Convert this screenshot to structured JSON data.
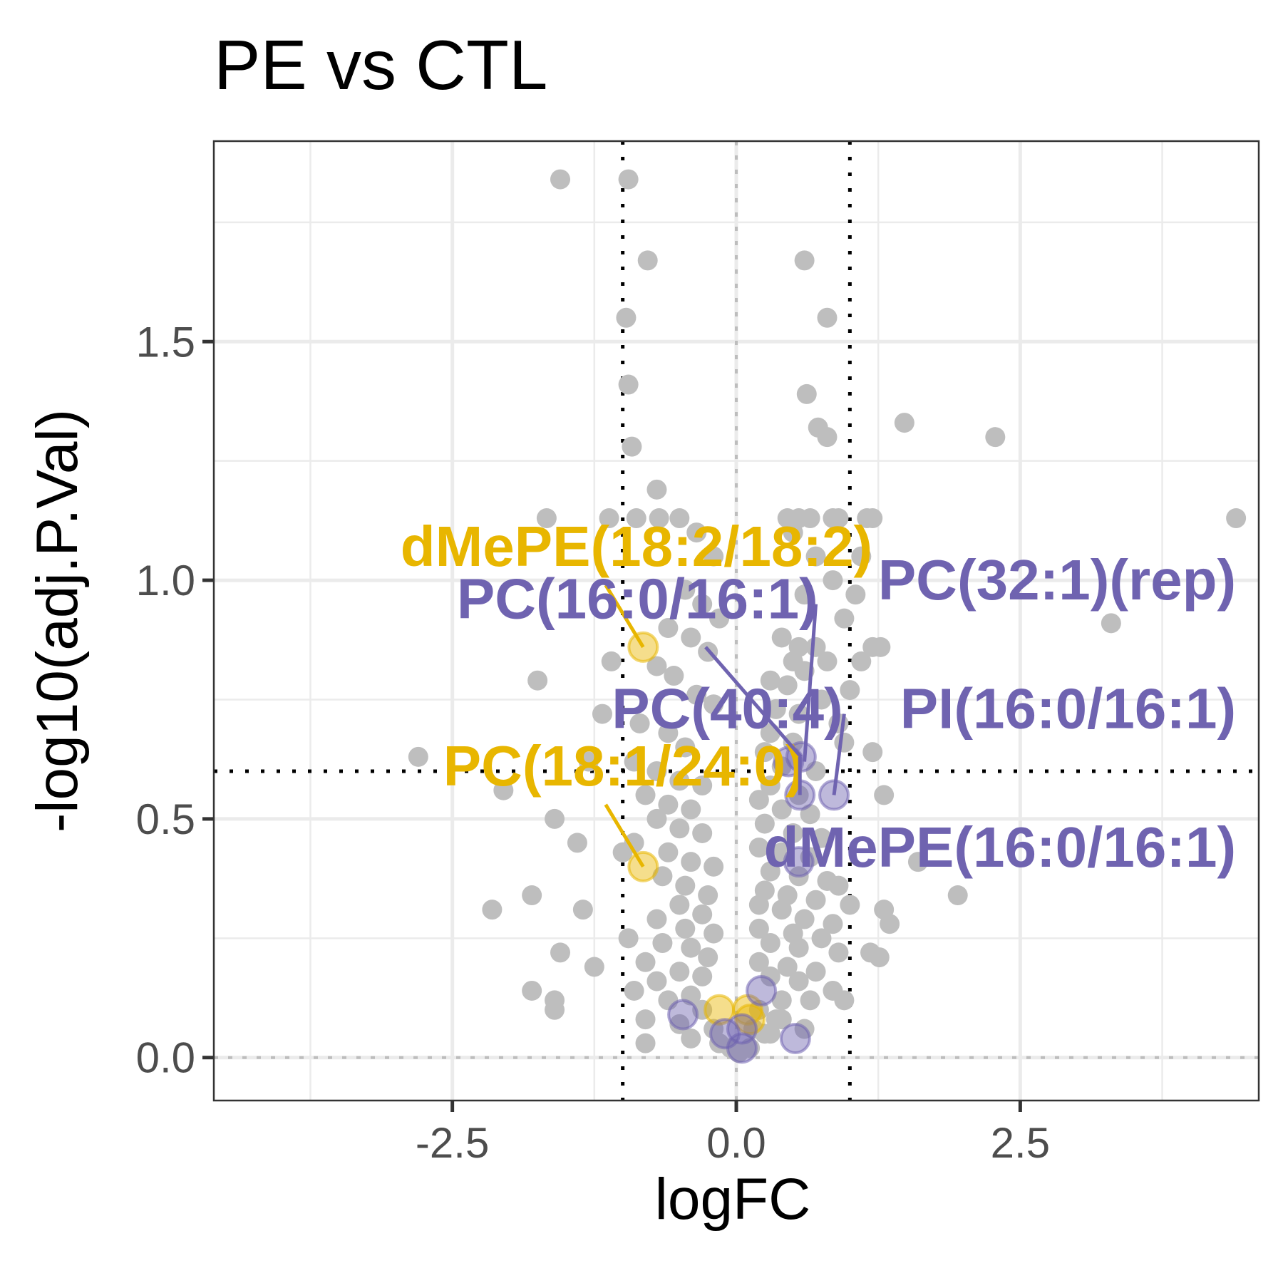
{
  "chart_data": {
    "type": "scatter",
    "title": "PE vs CTL",
    "xlabel": "logFC",
    "ylabel": "-log10(adj.P.Val)",
    "xlim": [
      -4.6,
      4.6
    ],
    "ylim": [
      -0.09,
      1.92
    ],
    "x_ticks": [
      "-2.5",
      "0.0",
      "2.5"
    ],
    "y_ticks": [
      "0.0",
      "0.5",
      "1.0",
      "1.5"
    ],
    "thresholds": {
      "logFC": [
        -1,
        1
      ],
      "neg_log10_p": 0.6
    },
    "colors": {
      "background_points": "#bebebe",
      "gold": "#e8b600",
      "purple": "#6f63b0"
    },
    "grid": true,
    "legend": "none",
    "background_points": [
      [
        -1.55,
        1.84
      ],
      [
        -0.95,
        1.84
      ],
      [
        -0.78,
        1.67
      ],
      [
        -0.97,
        1.55
      ],
      [
        -0.95,
        1.41
      ],
      [
        -0.92,
        1.28
      ],
      [
        -0.7,
        1.19
      ],
      [
        -1.67,
        1.13
      ],
      [
        -1.12,
        1.13
      ],
      [
        -0.88,
        1.13
      ],
      [
        -0.68,
        1.13
      ],
      [
        -0.5,
        1.13
      ],
      [
        -0.35,
        1.1
      ],
      [
        -0.2,
        1.05
      ],
      [
        -0.45,
        0.98
      ],
      [
        -0.3,
        0.95
      ],
      [
        -0.15,
        0.92
      ],
      [
        -0.6,
        0.9
      ],
      [
        -0.4,
        0.88
      ],
      [
        -0.25,
        0.85
      ],
      [
        -1.1,
        0.83
      ],
      [
        -0.7,
        0.82
      ],
      [
        -0.55,
        0.8
      ],
      [
        -1.75,
        0.79
      ],
      [
        -0.35,
        0.76
      ],
      [
        -0.2,
        0.74
      ],
      [
        -1.18,
        0.72
      ],
      [
        -0.85,
        0.7
      ],
      [
        -0.6,
        0.68
      ],
      [
        -0.45,
        0.65
      ],
      [
        -2.8,
        0.63
      ],
      [
        -1.3,
        0.62
      ],
      [
        -0.9,
        0.62
      ],
      [
        -0.7,
        0.6
      ],
      [
        -0.5,
        0.58
      ],
      [
        -0.3,
        0.57
      ],
      [
        -2.05,
        0.56
      ],
      [
        -0.8,
        0.55
      ],
      [
        -0.6,
        0.53
      ],
      [
        -0.4,
        0.52
      ],
      [
        -0.7,
        0.5
      ],
      [
        -1.6,
        0.5
      ],
      [
        -0.5,
        0.48
      ],
      [
        -0.3,
        0.47
      ],
      [
        -1.4,
        0.45
      ],
      [
        -0.9,
        0.45
      ],
      [
        -1.0,
        0.43
      ],
      [
        -0.6,
        0.43
      ],
      [
        -0.4,
        0.41
      ],
      [
        -0.2,
        0.4
      ],
      [
        -0.65,
        0.38
      ],
      [
        -0.45,
        0.36
      ],
      [
        -1.8,
        0.34
      ],
      [
        -0.25,
        0.34
      ],
      [
        -0.5,
        0.32
      ],
      [
        -2.15,
        0.31
      ],
      [
        -1.35,
        0.31
      ],
      [
        -0.3,
        0.3
      ],
      [
        -0.7,
        0.29
      ],
      [
        -0.45,
        0.27
      ],
      [
        -0.2,
        0.26
      ],
      [
        -0.95,
        0.25
      ],
      [
        -0.65,
        0.24
      ],
      [
        -0.4,
        0.23
      ],
      [
        -1.55,
        0.22
      ],
      [
        -0.25,
        0.21
      ],
      [
        -0.8,
        0.2
      ],
      [
        -1.25,
        0.19
      ],
      [
        -0.5,
        0.18
      ],
      [
        -0.3,
        0.17
      ],
      [
        -0.7,
        0.16
      ],
      [
        -1.8,
        0.14
      ],
      [
        -0.9,
        0.14
      ],
      [
        -0.4,
        0.13
      ],
      [
        -1.6,
        0.12
      ],
      [
        -0.6,
        0.12
      ],
      [
        -1.6,
        0.1
      ],
      [
        -0.3,
        0.1
      ],
      [
        -0.8,
        0.08
      ],
      [
        -0.5,
        0.07
      ],
      [
        -0.2,
        0.06
      ],
      [
        -0.8,
        0.03
      ],
      [
        -0.4,
        0.04
      ],
      [
        -0.15,
        0.03
      ],
      [
        -0.05,
        0.02
      ],
      [
        0.02,
        0.01
      ],
      [
        0.12,
        0.02
      ],
      [
        0.25,
        0.05
      ],
      [
        0.35,
        0.08
      ],
      [
        0.6,
        1.67
      ],
      [
        0.8,
        1.55
      ],
      [
        0.62,
        1.39
      ],
      [
        0.72,
        1.32
      ],
      [
        0.8,
        1.3
      ],
      [
        1.48,
        1.33
      ],
      [
        2.28,
        1.3
      ],
      [
        4.4,
        1.13
      ],
      [
        0.45,
        1.13
      ],
      [
        0.55,
        1.13
      ],
      [
        0.65,
        1.13
      ],
      [
        0.85,
        1.13
      ],
      [
        0.9,
        1.13
      ],
      [
        1.15,
        1.13
      ],
      [
        1.2,
        1.13
      ],
      [
        0.5,
        1.1
      ],
      [
        0.7,
        1.05
      ],
      [
        1.1,
        1.05
      ],
      [
        0.85,
        1.0
      ],
      [
        0.6,
        0.97
      ],
      [
        1.05,
        0.97
      ],
      [
        0.95,
        0.92
      ],
      [
        3.3,
        0.91
      ],
      [
        0.4,
        0.88
      ],
      [
        0.55,
        0.86
      ],
      [
        0.7,
        0.86
      ],
      [
        1.2,
        0.86
      ],
      [
        1.27,
        0.86
      ],
      [
        0.5,
        0.83
      ],
      [
        0.8,
        0.83
      ],
      [
        1.1,
        0.83
      ],
      [
        0.6,
        0.81
      ],
      [
        0.3,
        0.79
      ],
      [
        0.45,
        0.78
      ],
      [
        1.0,
        0.77
      ],
      [
        0.75,
        0.75
      ],
      [
        0.35,
        0.73
      ],
      [
        0.55,
        0.72
      ],
      [
        0.9,
        0.7
      ],
      [
        0.3,
        0.68
      ],
      [
        0.5,
        0.66
      ],
      [
        0.95,
        0.66
      ],
      [
        0.25,
        0.64
      ],
      [
        1.2,
        0.64
      ],
      [
        0.4,
        0.61
      ],
      [
        0.7,
        0.6
      ],
      [
        0.3,
        0.57
      ],
      [
        0.55,
        0.55
      ],
      [
        0.2,
        0.54
      ],
      [
        1.3,
        0.55
      ],
      [
        0.4,
        0.52
      ],
      [
        0.65,
        0.51
      ],
      [
        0.25,
        0.49
      ],
      [
        0.5,
        0.47
      ],
      [
        0.75,
        0.46
      ],
      [
        0.2,
        0.44
      ],
      [
        0.4,
        0.43
      ],
      [
        0.65,
        0.42
      ],
      [
        1.6,
        0.41
      ],
      [
        0.3,
        0.39
      ],
      [
        0.55,
        0.38
      ],
      [
        0.8,
        0.37
      ],
      [
        0.9,
        0.36
      ],
      [
        1.95,
        0.34
      ],
      [
        0.25,
        0.35
      ],
      [
        0.45,
        0.34
      ],
      [
        0.7,
        0.33
      ],
      [
        0.2,
        0.32
      ],
      [
        1.0,
        0.32
      ],
      [
        0.4,
        0.31
      ],
      [
        1.3,
        0.31
      ],
      [
        0.6,
        0.29
      ],
      [
        0.85,
        0.28
      ],
      [
        1.35,
        0.28
      ],
      [
        0.2,
        0.27
      ],
      [
        0.5,
        0.26
      ],
      [
        0.75,
        0.25
      ],
      [
        0.3,
        0.24
      ],
      [
        0.55,
        0.23
      ],
      [
        0.9,
        0.22
      ],
      [
        1.18,
        0.22
      ],
      [
        1.26,
        0.21
      ],
      [
        0.2,
        0.2
      ],
      [
        0.45,
        0.19
      ],
      [
        0.7,
        0.18
      ],
      [
        0.3,
        0.17
      ],
      [
        0.55,
        0.16
      ],
      [
        0.85,
        0.14
      ],
      [
        0.95,
        0.12
      ],
      [
        0.4,
        0.12
      ],
      [
        0.65,
        0.12
      ],
      [
        0.2,
        0.1
      ],
      [
        0.4,
        0.08
      ],
      [
        0.3,
        0.05
      ],
      [
        0.15,
        0.06
      ],
      [
        0.6,
        0.06
      ]
    ],
    "highlighted_points": [
      {
        "x": -0.82,
        "y": 0.86,
        "color": "gold"
      },
      {
        "x": -0.82,
        "y": 0.4,
        "color": "gold"
      },
      {
        "x": -0.15,
        "y": 0.1,
        "color": "gold"
      },
      {
        "x": 0.1,
        "y": 0.1,
        "color": "gold"
      },
      {
        "x": 0.12,
        "y": 0.08,
        "color": "gold"
      },
      {
        "x": 0.57,
        "y": 0.63,
        "color": "purple"
      },
      {
        "x": 0.46,
        "y": 0.62,
        "color": "purple"
      },
      {
        "x": 0.56,
        "y": 0.55,
        "color": "purple"
      },
      {
        "x": 0.86,
        "y": 0.55,
        "color": "purple"
      },
      {
        "x": 0.55,
        "y": 0.41,
        "color": "purple"
      },
      {
        "x": -0.47,
        "y": 0.09,
        "color": "purple"
      },
      {
        "x": 0.22,
        "y": 0.14,
        "color": "purple"
      },
      {
        "x": -0.1,
        "y": 0.05,
        "color": "purple"
      },
      {
        "x": 0.05,
        "y": 0.02,
        "color": "purple"
      },
      {
        "x": 0.52,
        "y": 0.04,
        "color": "purple"
      },
      {
        "x": 0.05,
        "y": 0.06,
        "color": "purple"
      }
    ],
    "annotations": [
      {
        "text": "dMePE(18:2/18:2)",
        "color": "gold",
        "x": 1.2,
        "y": 1.03,
        "anchor": "end",
        "point": [
          -0.82,
          0.86
        ],
        "line_from": [
          -1.15,
          0.99
        ]
      },
      {
        "text": "PC(18:1/24:0)",
        "color": "gold",
        "x": 0.6,
        "y": 0.57,
        "anchor": "end",
        "point": [
          -0.82,
          0.4
        ],
        "line_from": [
          -1.15,
          0.53
        ]
      },
      {
        "text": "PC(16:0/16:1)",
        "color": "purple",
        "x": 0.72,
        "y": 0.92,
        "anchor": "end",
        "point": [
          0.57,
          0.63
        ],
        "line_from": [
          -0.27,
          0.86
        ]
      },
      {
        "text": "PC(32:1)(rep)",
        "color": "purple",
        "x": 4.4,
        "y": 0.96,
        "anchor": "end",
        "point": [
          0.6,
          0.62
        ],
        "line_from": [
          0.7,
          0.95
        ]
      },
      {
        "text": "PC(40:4)",
        "color": "purple",
        "x": 0.94,
        "y": 0.69,
        "anchor": "end",
        "point": [
          0.56,
          0.55
        ],
        "line_from": [
          0.56,
          0.63
        ]
      },
      {
        "text": "PI(16:0/16:1)",
        "color": "purple",
        "x": 4.4,
        "y": 0.69,
        "anchor": "end",
        "point": [
          0.86,
          0.55
        ],
        "line_from": [
          0.95,
          0.72
        ]
      },
      {
        "text": "dMePE(16:0/16:1)",
        "color": "purple",
        "x": 4.4,
        "y": 0.4,
        "anchor": "end",
        "point": null,
        "line_from": null
      }
    ]
  }
}
